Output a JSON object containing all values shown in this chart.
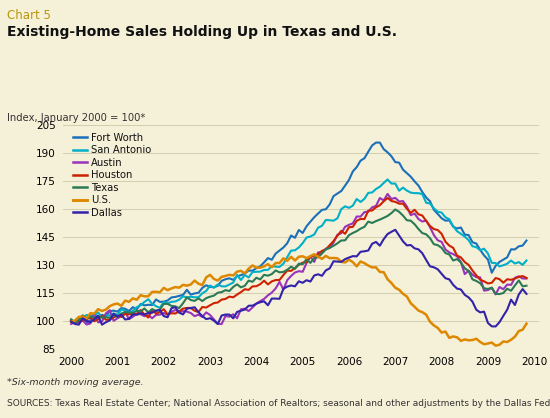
{
  "title_chart": "Chart 5",
  "title_main": "Existing-Home Sales Holding Up in Texas and U.S.",
  "ylabel": "Index, January 2000 = 100*",
  "footnote1": "*Six-month moving average.",
  "footnote2": "SOURCES: Texas Real Estate Center; National Association of Realtors; seasonal and other adjustments by the Dallas Fed.",
  "background_color": "#f5f0d8",
  "plot_bg_color": "#f5f0d8",
  "ylim": [
    85,
    205
  ],
  "yticks": [
    85,
    100,
    115,
    130,
    145,
    160,
    175,
    190,
    205
  ],
  "series": {
    "Fort Worth": {
      "color": "#1a6fba",
      "lw": 1.5
    },
    "San Antonio": {
      "color": "#00b0c8",
      "lw": 1.5
    },
    "Austin": {
      "color": "#9933bb",
      "lw": 1.5
    },
    "Houston": {
      "color": "#cc2200",
      "lw": 1.5
    },
    "Texas": {
      "color": "#2a7a55",
      "lw": 1.5
    },
    "U.S.": {
      "color": "#dd8800",
      "lw": 1.8
    },
    "Dallas": {
      "color": "#3322aa",
      "lw": 1.5
    }
  },
  "xtick_years": [
    2000,
    2001,
    2002,
    2003,
    2004,
    2005,
    2006,
    2007,
    2008,
    2009,
    2010
  ]
}
